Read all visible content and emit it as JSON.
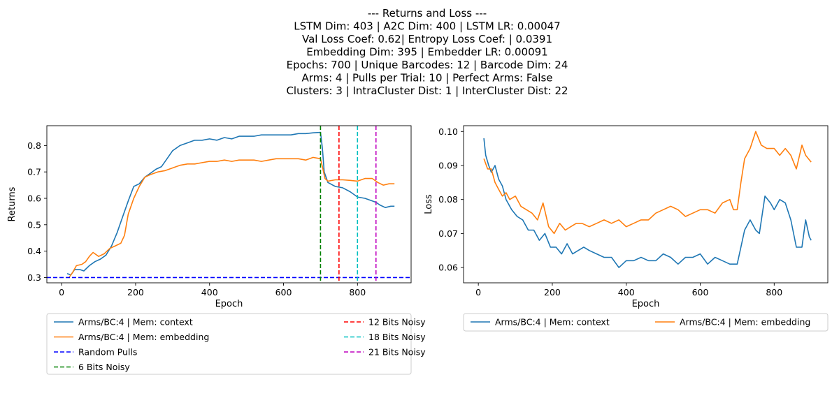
{
  "title_lines": [
    "--- Returns and Loss ---",
    "LSTM Dim: 403 | A2C Dim: 400 | LSTM LR: 0.00047",
    "Val Loss Coef: 0.62| Entropy Loss Coef: | 0.0391",
    "Embedding Dim: 395 | Embedder LR: 0.00091",
    "Epochs: 700 | Unique Barcodes: 12 | Barcode Dim: 24",
    "Arms: 4 | Pulls per Trial: 10 | Perfect Arms: False",
    "Clusters: 3 | IntraCluster Dist: 1 | InterCluster Dist: 22"
  ],
  "chart_data": [
    {
      "type": "line",
      "xlabel": "Epoch",
      "ylabel": "Returns",
      "xlim": [
        -40,
        945
      ],
      "ylim": [
        0.28,
        0.875
      ],
      "xticks": [
        0,
        200,
        400,
        600,
        800
      ],
      "yticks": [
        0.3,
        0.4,
        0.5,
        0.6,
        0.7,
        0.8
      ],
      "series": [
        {
          "name": "Arms/BC:4 | Mem: context",
          "color": "#1f77b4",
          "points": [
            [
              15,
              0.315
            ],
            [
              25,
              0.31
            ],
            [
              35,
              0.33
            ],
            [
              50,
              0.33
            ],
            [
              60,
              0.325
            ],
            [
              75,
              0.345
            ],
            [
              90,
              0.36
            ],
            [
              105,
              0.37
            ],
            [
              120,
              0.385
            ],
            [
              135,
              0.42
            ],
            [
              150,
              0.47
            ],
            [
              165,
              0.53
            ],
            [
              180,
              0.59
            ],
            [
              195,
              0.645
            ],
            [
              210,
              0.655
            ],
            [
              225,
              0.68
            ],
            [
              240,
              0.695
            ],
            [
              255,
              0.71
            ],
            [
              270,
              0.72
            ],
            [
              285,
              0.75
            ],
            [
              300,
              0.78
            ],
            [
              320,
              0.8
            ],
            [
              340,
              0.81
            ],
            [
              360,
              0.82
            ],
            [
              380,
              0.82
            ],
            [
              400,
              0.825
            ],
            [
              420,
              0.82
            ],
            [
              440,
              0.83
            ],
            [
              460,
              0.825
            ],
            [
              480,
              0.835
            ],
            [
              500,
              0.835
            ],
            [
              520,
              0.835
            ],
            [
              540,
              0.84
            ],
            [
              560,
              0.84
            ],
            [
              580,
              0.84
            ],
            [
              600,
              0.84
            ],
            [
              620,
              0.84
            ],
            [
              640,
              0.845
            ],
            [
              660,
              0.845
            ],
            [
              680,
              0.848
            ],
            [
              700,
              0.85
            ],
            [
              705,
              0.79
            ],
            [
              710,
              0.7
            ],
            [
              720,
              0.66
            ],
            [
              740,
              0.645
            ],
            [
              760,
              0.64
            ],
            [
              780,
              0.625
            ],
            [
              800,
              0.605
            ],
            [
              820,
              0.6
            ],
            [
              840,
              0.59
            ],
            [
              850,
              0.585
            ],
            [
              860,
              0.575
            ],
            [
              875,
              0.565
            ],
            [
              890,
              0.57
            ],
            [
              900,
              0.57
            ]
          ]
        },
        {
          "name": "Arms/BC:4 | Mem: embedding",
          "color": "#ff7f0e",
          "points": [
            [
              20,
              0.3
            ],
            [
              30,
              0.32
            ],
            [
              40,
              0.345
            ],
            [
              55,
              0.35
            ],
            [
              65,
              0.36
            ],
            [
              75,
              0.38
            ],
            [
              85,
              0.395
            ],
            [
              100,
              0.38
            ],
            [
              115,
              0.39
            ],
            [
              130,
              0.41
            ],
            [
              145,
              0.42
            ],
            [
              160,
              0.43
            ],
            [
              170,
              0.46
            ],
            [
              180,
              0.54
            ],
            [
              195,
              0.6
            ],
            [
              210,
              0.645
            ],
            [
              225,
              0.68
            ],
            [
              240,
              0.69
            ],
            [
              260,
              0.7
            ],
            [
              280,
              0.705
            ],
            [
              300,
              0.715
            ],
            [
              320,
              0.725
            ],
            [
              340,
              0.73
            ],
            [
              360,
              0.73
            ],
            [
              380,
              0.735
            ],
            [
              400,
              0.74
            ],
            [
              420,
              0.74
            ],
            [
              440,
              0.745
            ],
            [
              460,
              0.74
            ],
            [
              480,
              0.745
            ],
            [
              500,
              0.745
            ],
            [
              520,
              0.745
            ],
            [
              540,
              0.74
            ],
            [
              560,
              0.745
            ],
            [
              580,
              0.75
            ],
            [
              600,
              0.75
            ],
            [
              620,
              0.75
            ],
            [
              640,
              0.75
            ],
            [
              660,
              0.745
            ],
            [
              680,
              0.755
            ],
            [
              700,
              0.75
            ],
            [
              705,
              0.72
            ],
            [
              712,
              0.675
            ],
            [
              720,
              0.665
            ],
            [
              740,
              0.67
            ],
            [
              760,
              0.67
            ],
            [
              780,
              0.668
            ],
            [
              800,
              0.665
            ],
            [
              820,
              0.675
            ],
            [
              840,
              0.675
            ],
            [
              855,
              0.66
            ],
            [
              870,
              0.65
            ],
            [
              885,
              0.655
            ],
            [
              900,
              0.655
            ]
          ]
        }
      ],
      "hlines": [
        {
          "name": "Random Pulls",
          "y": 0.3,
          "color": "#0000ff"
        }
      ],
      "vlines": [
        {
          "name": "6 Bits Noisy",
          "x": 700,
          "color": "#008000"
        },
        {
          "name": "12 Bits Noisy",
          "x": 750,
          "color": "#ff0000"
        },
        {
          "name": "18 Bits Noisy",
          "x": 800,
          "color": "#00bfbf"
        },
        {
          "name": "21 Bits Noisy",
          "x": 850,
          "color": "#bf00bf"
        }
      ],
      "legend": "below, 2 columns"
    },
    {
      "type": "line",
      "xlabel": "Epoch",
      "ylabel": "Loss",
      "xlim": [
        -40,
        945
      ],
      "ylim": [
        0.0555,
        0.1017
      ],
      "xticks": [
        0,
        200,
        400,
        600,
        800
      ],
      "yticks": [
        0.06,
        0.07,
        0.08,
        0.09,
        0.1
      ],
      "series": [
        {
          "name": "Arms/BC:4 | Mem: context",
          "color": "#1f77b4",
          "points": [
            [
              15,
              0.098
            ],
            [
              20,
              0.093
            ],
            [
              28,
              0.09
            ],
            [
              35,
              0.088
            ],
            [
              45,
              0.09
            ],
            [
              55,
              0.086
            ],
            [
              65,
              0.084
            ],
            [
              75,
              0.08
            ],
            [
              90,
              0.077
            ],
            [
              105,
              0.075
            ],
            [
              120,
              0.074
            ],
            [
              135,
              0.071
            ],
            [
              150,
              0.071
            ],
            [
              165,
              0.068
            ],
            [
              180,
              0.07
            ],
            [
              195,
              0.066
            ],
            [
              210,
              0.066
            ],
            [
              225,
              0.064
            ],
            [
              240,
              0.067
            ],
            [
              255,
              0.064
            ],
            [
              270,
              0.065
            ],
            [
              285,
              0.066
            ],
            [
              300,
              0.065
            ],
            [
              320,
              0.064
            ],
            [
              340,
              0.063
            ],
            [
              360,
              0.063
            ],
            [
              380,
              0.06
            ],
            [
              400,
              0.062
            ],
            [
              420,
              0.062
            ],
            [
              440,
              0.063
            ],
            [
              460,
              0.062
            ],
            [
              480,
              0.062
            ],
            [
              500,
              0.064
            ],
            [
              520,
              0.063
            ],
            [
              540,
              0.061
            ],
            [
              560,
              0.063
            ],
            [
              580,
              0.063
            ],
            [
              600,
              0.064
            ],
            [
              620,
              0.061
            ],
            [
              640,
              0.063
            ],
            [
              660,
              0.062
            ],
            [
              680,
              0.061
            ],
            [
              700,
              0.061
            ],
            [
              710,
              0.066
            ],
            [
              720,
              0.071
            ],
            [
              735,
              0.074
            ],
            [
              750,
              0.071
            ],
            [
              760,
              0.07
            ],
            [
              775,
              0.081
            ],
            [
              790,
              0.079
            ],
            [
              800,
              0.077
            ],
            [
              815,
              0.08
            ],
            [
              830,
              0.079
            ],
            [
              845,
              0.074
            ],
            [
              860,
              0.066
            ],
            [
              875,
              0.066
            ],
            [
              885,
              0.074
            ],
            [
              895,
              0.069
            ],
            [
              900,
              0.068
            ]
          ]
        },
        {
          "name": "Arms/BC:4 | Mem: embedding",
          "color": "#ff7f0e",
          "points": [
            [
              15,
              0.092
            ],
            [
              25,
              0.089
            ],
            [
              35,
              0.089
            ],
            [
              45,
              0.085
            ],
            [
              55,
              0.083
            ],
            [
              65,
              0.081
            ],
            [
              75,
              0.082
            ],
            [
              85,
              0.08
            ],
            [
              100,
              0.081
            ],
            [
              115,
              0.078
            ],
            [
              130,
              0.077
            ],
            [
              145,
              0.076
            ],
            [
              160,
              0.074
            ],
            [
              175,
              0.079
            ],
            [
              190,
              0.072
            ],
            [
              205,
              0.07
            ],
            [
              220,
              0.073
            ],
            [
              235,
              0.071
            ],
            [
              250,
              0.072
            ],
            [
              265,
              0.073
            ],
            [
              280,
              0.073
            ],
            [
              300,
              0.072
            ],
            [
              320,
              0.073
            ],
            [
              340,
              0.074
            ],
            [
              360,
              0.073
            ],
            [
              380,
              0.074
            ],
            [
              400,
              0.072
            ],
            [
              420,
              0.073
            ],
            [
              440,
              0.074
            ],
            [
              460,
              0.074
            ],
            [
              480,
              0.076
            ],
            [
              500,
              0.077
            ],
            [
              520,
              0.078
            ],
            [
              540,
              0.077
            ],
            [
              560,
              0.075
            ],
            [
              580,
              0.076
            ],
            [
              600,
              0.077
            ],
            [
              620,
              0.077
            ],
            [
              640,
              0.076
            ],
            [
              660,
              0.079
            ],
            [
              680,
              0.08
            ],
            [
              690,
              0.077
            ],
            [
              700,
              0.077
            ],
            [
              710,
              0.085
            ],
            [
              720,
              0.092
            ],
            [
              735,
              0.095
            ],
            [
              750,
              0.1
            ],
            [
              765,
              0.096
            ],
            [
              780,
              0.095
            ],
            [
              800,
              0.095
            ],
            [
              815,
              0.093
            ],
            [
              830,
              0.095
            ],
            [
              845,
              0.093
            ],
            [
              860,
              0.089
            ],
            [
              875,
              0.096
            ],
            [
              885,
              0.093
            ],
            [
              900,
              0.091
            ]
          ]
        }
      ],
      "legend": "below, 2 columns"
    }
  ]
}
